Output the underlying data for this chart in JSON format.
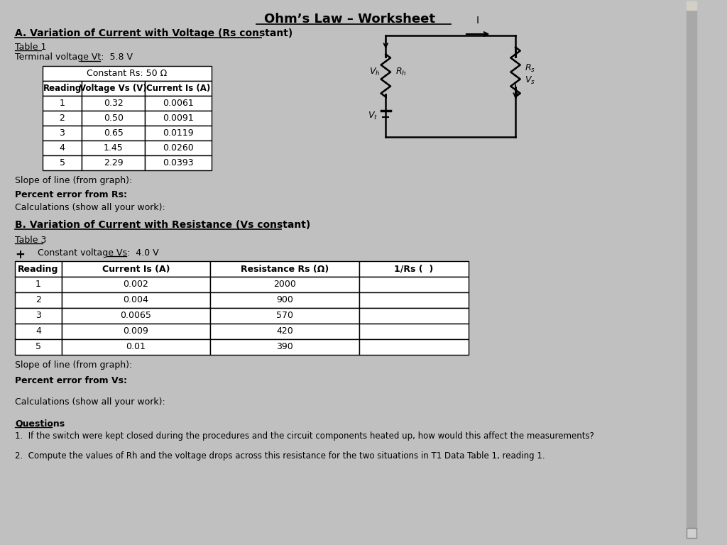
{
  "title": "Ohm’s Law – Worksheet",
  "bg_color": "#c0c0c0",
  "section_a_heading": "A. Variation of Current with Voltage (Rs constant)",
  "table1_label": "Table 1",
  "table1_terminal": "Terminal voltage Vt:  5.8 V",
  "table1_terminal_underline": "5.8 V",
  "table1_constant": "Constant Rs: 50 Ω",
  "table1_headers": [
    "Reading",
    "Voltage Vs (V)",
    "Current Is (A)"
  ],
  "table1_data": [
    [
      "1",
      "0.32",
      "0.0061"
    ],
    [
      "2",
      "0.50",
      "0.0091"
    ],
    [
      "3",
      "0.65",
      "0.0119"
    ],
    [
      "4",
      "1.45",
      "0.0260"
    ],
    [
      "5",
      "2.29",
      "0.0393"
    ]
  ],
  "slope_line_a": "Slope of line (from graph):",
  "percent_error_a": "Percent error from Rs:",
  "calculations_a": "Calculations (show all your work):",
  "section_b_heading": "B. Variation of Current with Resistance (Vs constant)",
  "table3_label": "Table 3",
  "table3_constant": "Constant voltage Vs:  4.0 V",
  "table3_headers": [
    "Reading",
    "Current Is (A)",
    "Resistance Rs (Ω)",
    "1/Rs (  )"
  ],
  "table3_data": [
    [
      "1",
      "0.002",
      "2000",
      ""
    ],
    [
      "2",
      "0.004",
      "900",
      ""
    ],
    [
      "3",
      "0.0065",
      "570",
      ""
    ],
    [
      "4",
      "0.009",
      "420",
      ""
    ],
    [
      "5",
      "0.01",
      "390",
      ""
    ]
  ],
  "slope_line_b": "Slope of line (from graph):",
  "percent_error_b": "Percent error from Vs:",
  "calculations_b": "Calculations (show all your work):",
  "questions_heading": "Questions",
  "question1": "1.  If the switch were kept closed during the procedures and the circuit components heated up, how would this affect the measurements?",
  "question2": "2.  Compute the values of Rh and the voltage drops across this resistance for the two situations in T1 Data Table 1, reading 1."
}
